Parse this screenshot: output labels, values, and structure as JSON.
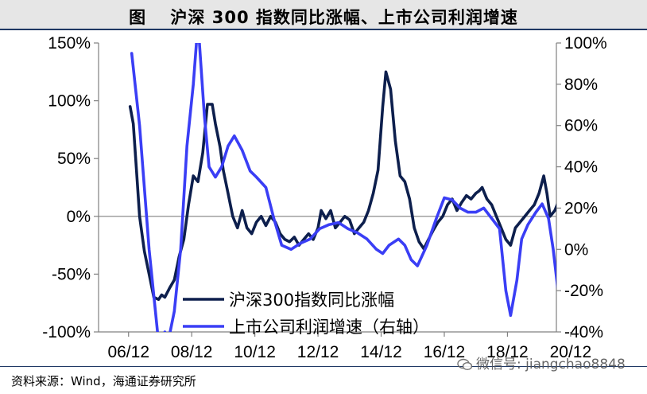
{
  "header": {
    "title": "图　 沪深 300 指数同比涨幅、上市公司利润增速"
  },
  "footer": {
    "source": "资料来源：Wind，海通证券研究所",
    "watermark": "微信号: jiangchao8848"
  },
  "colors": {
    "index_line": "#0d1f4d",
    "profit_line": "#3a3ef5",
    "axis": "#808080"
  },
  "chart_data": {
    "type": "line",
    "title": "沪深 300 指数同比涨幅、上市公司利润增速",
    "x_ticks": [
      "06/12",
      "08/12",
      "10/12",
      "12/12",
      "14/12",
      "16/12",
      "18/12",
      "20/12"
    ],
    "x_range": [
      2006.0,
      2020.5
    ],
    "y_left": {
      "ticks": [
        "150%",
        "100%",
        "50%",
        "0%",
        "-50%",
        "-100%"
      ],
      "range": [
        -100,
        150
      ]
    },
    "y_right": {
      "ticks": [
        "100%",
        "80%",
        "60%",
        "40%",
        "20%",
        "0%",
        "-20%",
        "-40%"
      ],
      "range": [
        -40,
        100
      ]
    },
    "legend": {
      "placement": "bottom-center"
    },
    "series": [
      {
        "name": "沪深300指数同比涨幅",
        "axis": "left",
        "points": [
          [
            2007.0,
            95
          ],
          [
            2007.1,
            80
          ],
          [
            2007.2,
            40
          ],
          [
            2007.3,
            0
          ],
          [
            2007.45,
            -30
          ],
          [
            2007.6,
            -50
          ],
          [
            2007.75,
            -70
          ],
          [
            2007.9,
            -72
          ],
          [
            2008.0,
            -68
          ],
          [
            2008.1,
            -70
          ],
          [
            2008.25,
            -62
          ],
          [
            2008.4,
            -55
          ],
          [
            2008.55,
            -35
          ],
          [
            2008.7,
            -20
          ],
          [
            2008.85,
            10
          ],
          [
            2009.0,
            35
          ],
          [
            2009.15,
            30
          ],
          [
            2009.3,
            55
          ],
          [
            2009.45,
            97
          ],
          [
            2009.6,
            97
          ],
          [
            2009.7,
            80
          ],
          [
            2009.85,
            60
          ],
          [
            2009.95,
            40
          ],
          [
            2010.1,
            20
          ],
          [
            2010.25,
            0
          ],
          [
            2010.4,
            -10
          ],
          [
            2010.55,
            5
          ],
          [
            2010.7,
            -10
          ],
          [
            2010.85,
            -15
          ],
          [
            2011.0,
            -5
          ],
          [
            2011.15,
            0
          ],
          [
            2011.3,
            -8
          ],
          [
            2011.45,
            0
          ],
          [
            2011.6,
            -5
          ],
          [
            2011.75,
            -15
          ],
          [
            2011.9,
            -20
          ],
          [
            2012.05,
            -22
          ],
          [
            2012.2,
            -18
          ],
          [
            2012.35,
            -25
          ],
          [
            2012.5,
            -20
          ],
          [
            2012.65,
            -15
          ],
          [
            2012.8,
            -20
          ],
          [
            2012.95,
            -10
          ],
          [
            2013.05,
            5
          ],
          [
            2013.2,
            -2
          ],
          [
            2013.35,
            5
          ],
          [
            2013.5,
            -10
          ],
          [
            2013.65,
            -5
          ],
          [
            2013.8,
            0
          ],
          [
            2013.95,
            -3
          ],
          [
            2014.1,
            -15
          ],
          [
            2014.25,
            -10
          ],
          [
            2014.4,
            -5
          ],
          [
            2014.55,
            5
          ],
          [
            2014.7,
            20
          ],
          [
            2014.85,
            40
          ],
          [
            2015.0,
            95
          ],
          [
            2015.1,
            125
          ],
          [
            2015.25,
            110
          ],
          [
            2015.4,
            65
          ],
          [
            2015.55,
            35
          ],
          [
            2015.7,
            30
          ],
          [
            2015.85,
            15
          ],
          [
            2016.0,
            -10
          ],
          [
            2016.15,
            -22
          ],
          [
            2016.3,
            -28
          ],
          [
            2016.45,
            -20
          ],
          [
            2016.6,
            -12
          ],
          [
            2016.75,
            -5
          ],
          [
            2016.9,
            0
          ],
          [
            2017.05,
            10
          ],
          [
            2017.2,
            15
          ],
          [
            2017.35,
            5
          ],
          [
            2017.5,
            12
          ],
          [
            2017.65,
            18
          ],
          [
            2017.8,
            15
          ],
          [
            2017.95,
            20
          ],
          [
            2018.05,
            22
          ],
          [
            2018.15,
            25
          ],
          [
            2018.3,
            15
          ],
          [
            2018.45,
            10
          ],
          [
            2018.6,
            0
          ],
          [
            2018.75,
            -10
          ],
          [
            2018.9,
            -20
          ],
          [
            2019.05,
            -25
          ],
          [
            2019.2,
            -10
          ],
          [
            2019.35,
            -5
          ],
          [
            2019.5,
            0
          ],
          [
            2019.65,
            5
          ],
          [
            2019.8,
            10
          ],
          [
            2019.95,
            20
          ],
          [
            2020.1,
            35
          ],
          [
            2020.2,
            20
          ],
          [
            2020.3,
            0
          ],
          [
            2020.45,
            5
          ],
          [
            2020.6,
            15
          ],
          [
            2020.75,
            25
          ],
          [
            2020.9,
            22
          ]
        ]
      },
      {
        "name": "上市公司利润增速（右轴）",
        "axis": "right",
        "points": [
          [
            2007.05,
            95
          ],
          [
            2007.3,
            60
          ],
          [
            2007.6,
            0
          ],
          [
            2007.9,
            -45
          ],
          [
            2008.1,
            -40
          ],
          [
            2008.2,
            -45
          ],
          [
            2008.4,
            -30
          ],
          [
            2008.6,
            0
          ],
          [
            2008.8,
            50
          ],
          [
            2009.0,
            80
          ],
          [
            2009.15,
            110
          ],
          [
            2009.35,
            65
          ],
          [
            2009.5,
            40
          ],
          [
            2009.7,
            35
          ],
          [
            2009.9,
            40
          ],
          [
            2010.1,
            50
          ],
          [
            2010.3,
            55
          ],
          [
            2010.55,
            48
          ],
          [
            2010.8,
            38
          ],
          [
            2011.0,
            35
          ],
          [
            2011.3,
            30
          ],
          [
            2011.55,
            15
          ],
          [
            2011.8,
            2
          ],
          [
            2012.1,
            0
          ],
          [
            2012.4,
            3
          ],
          [
            2012.7,
            5
          ],
          [
            2013.0,
            10
          ],
          [
            2013.3,
            12
          ],
          [
            2013.6,
            13
          ],
          [
            2013.9,
            10
          ],
          [
            2014.2,
            8
          ],
          [
            2014.5,
            5
          ],
          [
            2014.8,
            0
          ],
          [
            2015.0,
            -2
          ],
          [
            2015.2,
            2
          ],
          [
            2015.5,
            5
          ],
          [
            2015.7,
            2
          ],
          [
            2015.9,
            -5
          ],
          [
            2016.1,
            -8
          ],
          [
            2016.4,
            2
          ],
          [
            2016.7,
            15
          ],
          [
            2016.95,
            25
          ],
          [
            2017.2,
            24
          ],
          [
            2017.45,
            20
          ],
          [
            2017.7,
            18
          ],
          [
            2017.95,
            18
          ],
          [
            2018.2,
            20
          ],
          [
            2018.45,
            15
          ],
          [
            2018.7,
            10
          ],
          [
            2018.9,
            -20
          ],
          [
            2019.05,
            -32
          ],
          [
            2019.25,
            -15
          ],
          [
            2019.4,
            5
          ],
          [
            2019.6,
            12
          ],
          [
            2019.85,
            18
          ],
          [
            2020.05,
            22
          ],
          [
            2020.25,
            15
          ],
          [
            2020.4,
            0
          ],
          [
            2020.55,
            -20
          ]
        ]
      }
    ]
  }
}
